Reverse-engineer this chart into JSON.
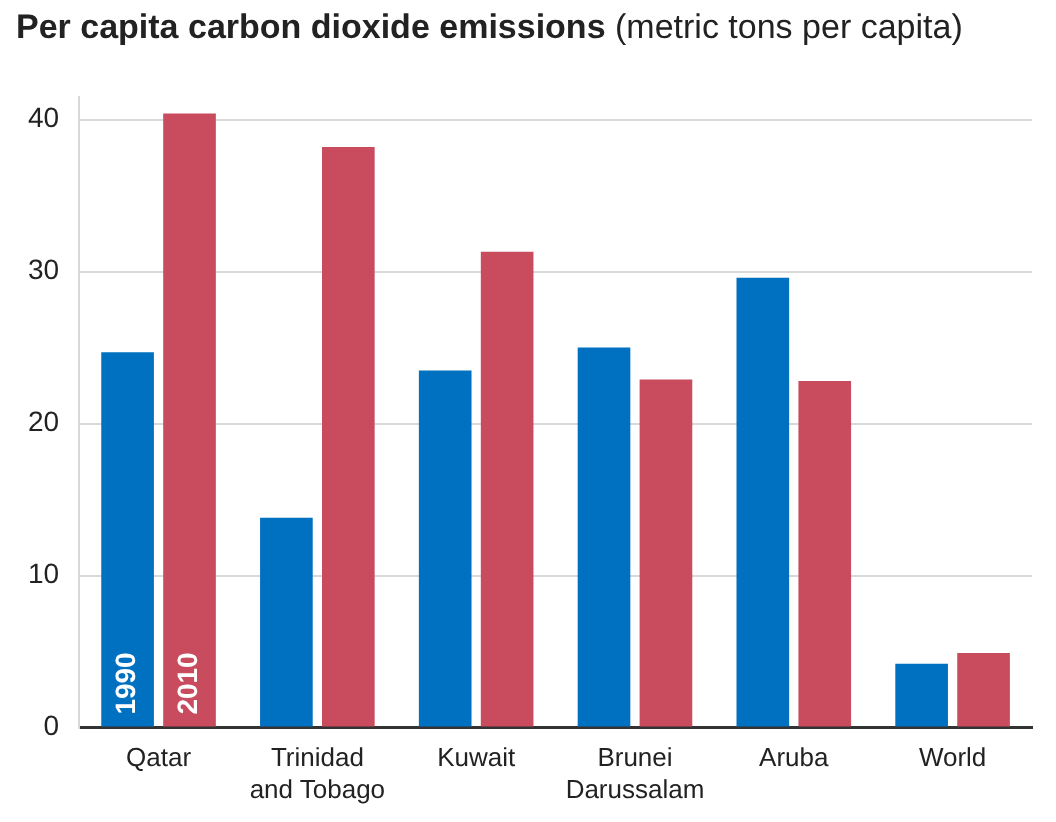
{
  "chart_data": {
    "type": "bar",
    "title": "Per capita carbon dioxide emissions",
    "subtitle": "(metric tons per capita)",
    "categories": [
      "Qatar",
      "Trinidad and Tobago",
      "Kuwait",
      "Brunei Darussalam",
      "Aruba",
      "World"
    ],
    "series": [
      {
        "name": "1990",
        "color": "#0070c0",
        "values": [
          24.7,
          13.8,
          23.5,
          25.0,
          29.6,
          4.2
        ]
      },
      {
        "name": "2010",
        "color": "#c84b5e",
        "values": [
          40.4,
          38.2,
          31.3,
          22.9,
          22.8,
          4.9
        ]
      }
    ],
    "ylim": [
      0,
      41.5
    ],
    "yticks": [
      0,
      10,
      20,
      30,
      40
    ],
    "grid": "y",
    "legend": false
  }
}
